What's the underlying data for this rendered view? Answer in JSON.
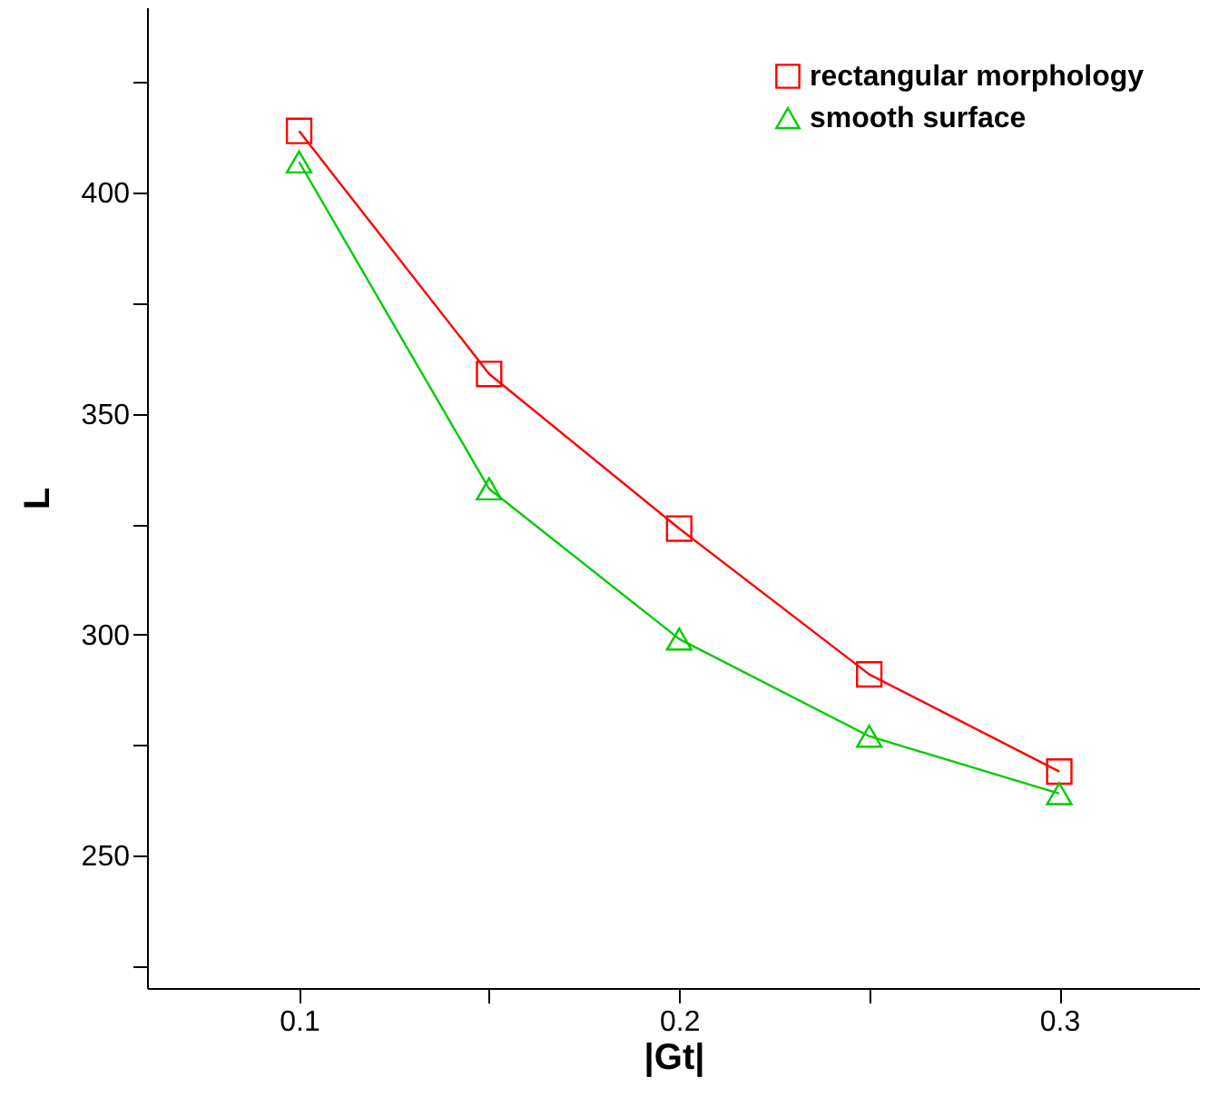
{
  "chart_data": {
    "type": "line",
    "xlabel": "|Gt|",
    "ylabel": "L",
    "x": [
      0.1,
      0.15,
      0.2,
      0.25,
      0.3
    ],
    "series": [
      {
        "name": "rectangular morphology",
        "color": "#ff0000",
        "marker": "square",
        "values": [
          414,
          359,
          324,
          291,
          269
        ]
      },
      {
        "name": "smooth surface",
        "color": "#00cc00",
        "marker": "triangle",
        "values": [
          407,
          333,
          299,
          277,
          264
        ]
      }
    ],
    "xlim": [
      0.06,
      0.337
    ],
    "xticks": [
      0.1,
      {
        "value": 0.15,
        "label": null
      },
      0.2,
      {
        "value": 0.25,
        "label": null
      },
      0.3
    ],
    "ylim": [
      220,
      442
    ],
    "yticks": [
      {
        "value": 225,
        "label": null
      },
      250,
      {
        "value": 275,
        "label": null
      },
      300,
      {
        "value": 325,
        "label": null
      },
      350,
      {
        "value": 375,
        "label": null
      },
      400,
      {
        "value": 425,
        "label": null
      }
    ],
    "grid": false,
    "legend": "top right",
    "line_style": "solid"
  }
}
